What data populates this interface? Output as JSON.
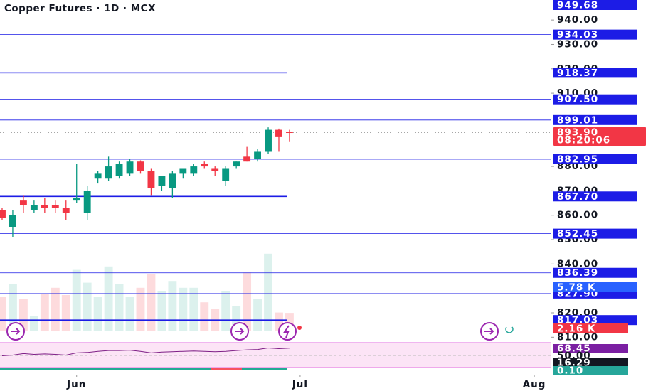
{
  "chart_data": {
    "type": "candlestick",
    "title": "Copper Futures · 1D · MCX",
    "x": [
      0,
      1,
      2,
      3,
      4,
      5,
      6,
      7,
      8,
      9,
      10,
      11,
      12,
      13,
      14,
      15,
      16,
      17,
      18,
      19,
      20,
      21,
      22,
      23,
      24,
      25,
      26,
      27
    ],
    "open": [
      862,
      855,
      866,
      862,
      864,
      864,
      863,
      866,
      861,
      875,
      875,
      876,
      877,
      882,
      878,
      872,
      871,
      877,
      877,
      881,
      879,
      874,
      880,
      884,
      883,
      886,
      895,
      894
    ],
    "high": [
      863,
      862,
      868,
      866,
      867,
      866,
      866,
      881,
      872,
      878,
      884,
      882,
      883,
      882.5,
      879,
      876,
      878,
      879,
      881,
      882,
      880,
      880,
      882,
      888,
      887,
      896,
      895.5,
      895
    ],
    "low": [
      858,
      851,
      861,
      861,
      861,
      861,
      858,
      865,
      858,
      873,
      874,
      875,
      876,
      877,
      868,
      870,
      867,
      875,
      876,
      879,
      876,
      872,
      879,
      882,
      882,
      885,
      886,
      890
    ],
    "close": [
      859,
      860,
      864,
      864,
      863,
      863,
      861,
      867,
      870,
      877,
      880,
      881,
      882,
      878,
      871,
      876,
      877,
      879,
      880,
      880,
      878,
      879,
      882,
      882,
      886,
      895,
      892,
      893.9
    ],
    "up_color": "#089981",
    "down_color": "#f23645",
    "xlim": [
      -0.2,
      51.6
    ],
    "xticks": [
      {
        "value": 7,
        "label": "Jun"
      },
      {
        "value": 28,
        "label": "Jul"
      },
      {
        "value": 50,
        "label": "Aug"
      }
    ],
    "ylim": [
      809.8,
      948.2
    ],
    "yticks": [
      {
        "value": 810,
        "label": "810.00"
      },
      {
        "value": 820,
        "label": "820.00"
      },
      {
        "value": 840,
        "label": "840.00"
      },
      {
        "value": 850,
        "label": "850.00"
      },
      {
        "value": 860,
        "label": "860.00"
      },
      {
        "value": 870,
        "label": "870.00"
      },
      {
        "value": 880,
        "label": "880.00"
      },
      {
        "value": 910,
        "label": "910.00"
      },
      {
        "value": 920,
        "label": "920.00"
      },
      {
        "value": 930,
        "label": "930.00"
      },
      {
        "value": 940,
        "label": "940.00"
      }
    ],
    "levels": [
      {
        "value": 949.68,
        "label": "949.68",
        "full": true
      },
      {
        "value": 934.03,
        "label": "934.03",
        "full": true
      },
      {
        "value": 918.37,
        "label": "918.37",
        "full": false
      },
      {
        "value": 907.5,
        "label": "907.50",
        "full": true
      },
      {
        "value": 899.01,
        "label": "899.01",
        "full": true
      },
      {
        "value": 882.95,
        "label": "882.95",
        "full": true
      },
      {
        "value": 867.7,
        "label": "867.70",
        "full": false
      },
      {
        "value": 852.45,
        "label": "852.45",
        "full": true
      },
      {
        "value": 836.39,
        "label": "836.39",
        "full": true
      },
      {
        "value": 827.9,
        "label": "827.90",
        "full": true
      },
      {
        "value": 817.03,
        "label": "817.03",
        "full": false
      }
    ],
    "level_color": "#1c1ce6",
    "last_price": {
      "value": 893.9,
      "label": "893.90"
    },
    "countdown": "08:20:06",
    "volume": {
      "values": [
        4.0,
        5.5,
        3.8,
        1.75,
        4.4,
        5.1,
        4.25,
        7.2,
        5.7,
        4.0,
        7.6,
        5.5,
        4.0,
        5.1,
        6.75,
        4.7,
        5.9,
        5.1,
        5.1,
        3.4,
        2.6,
        4.7,
        3.0,
        6.9,
        3.8,
        9.1,
        2.2,
        2.16
      ],
      "ylim": [
        0,
        10
      ],
      "ma": {
        "value": 5.78,
        "label": "5.78 K"
      },
      "last": {
        "value": 2.16,
        "label": "2.16 K"
      }
    },
    "rsi": {
      "values": [
        48,
        50,
        54,
        52,
        53,
        52,
        50,
        56,
        57,
        60,
        62,
        62,
        63,
        60,
        56,
        58,
        59,
        60,
        61,
        60,
        59,
        60,
        62,
        64,
        65,
        69,
        67,
        68.45
      ],
      "ylim": [
        16.8,
        83.2
      ],
      "color": "#7e1f86",
      "labels": [
        {
          "value": 68.45,
          "label": "68.45"
        },
        {
          "value": 50,
          "label": "50.00"
        },
        {
          "value": 16.29,
          "label": "16.29"
        },
        {
          "value": 0.1,
          "label": "0.10"
        }
      ]
    }
  }
}
